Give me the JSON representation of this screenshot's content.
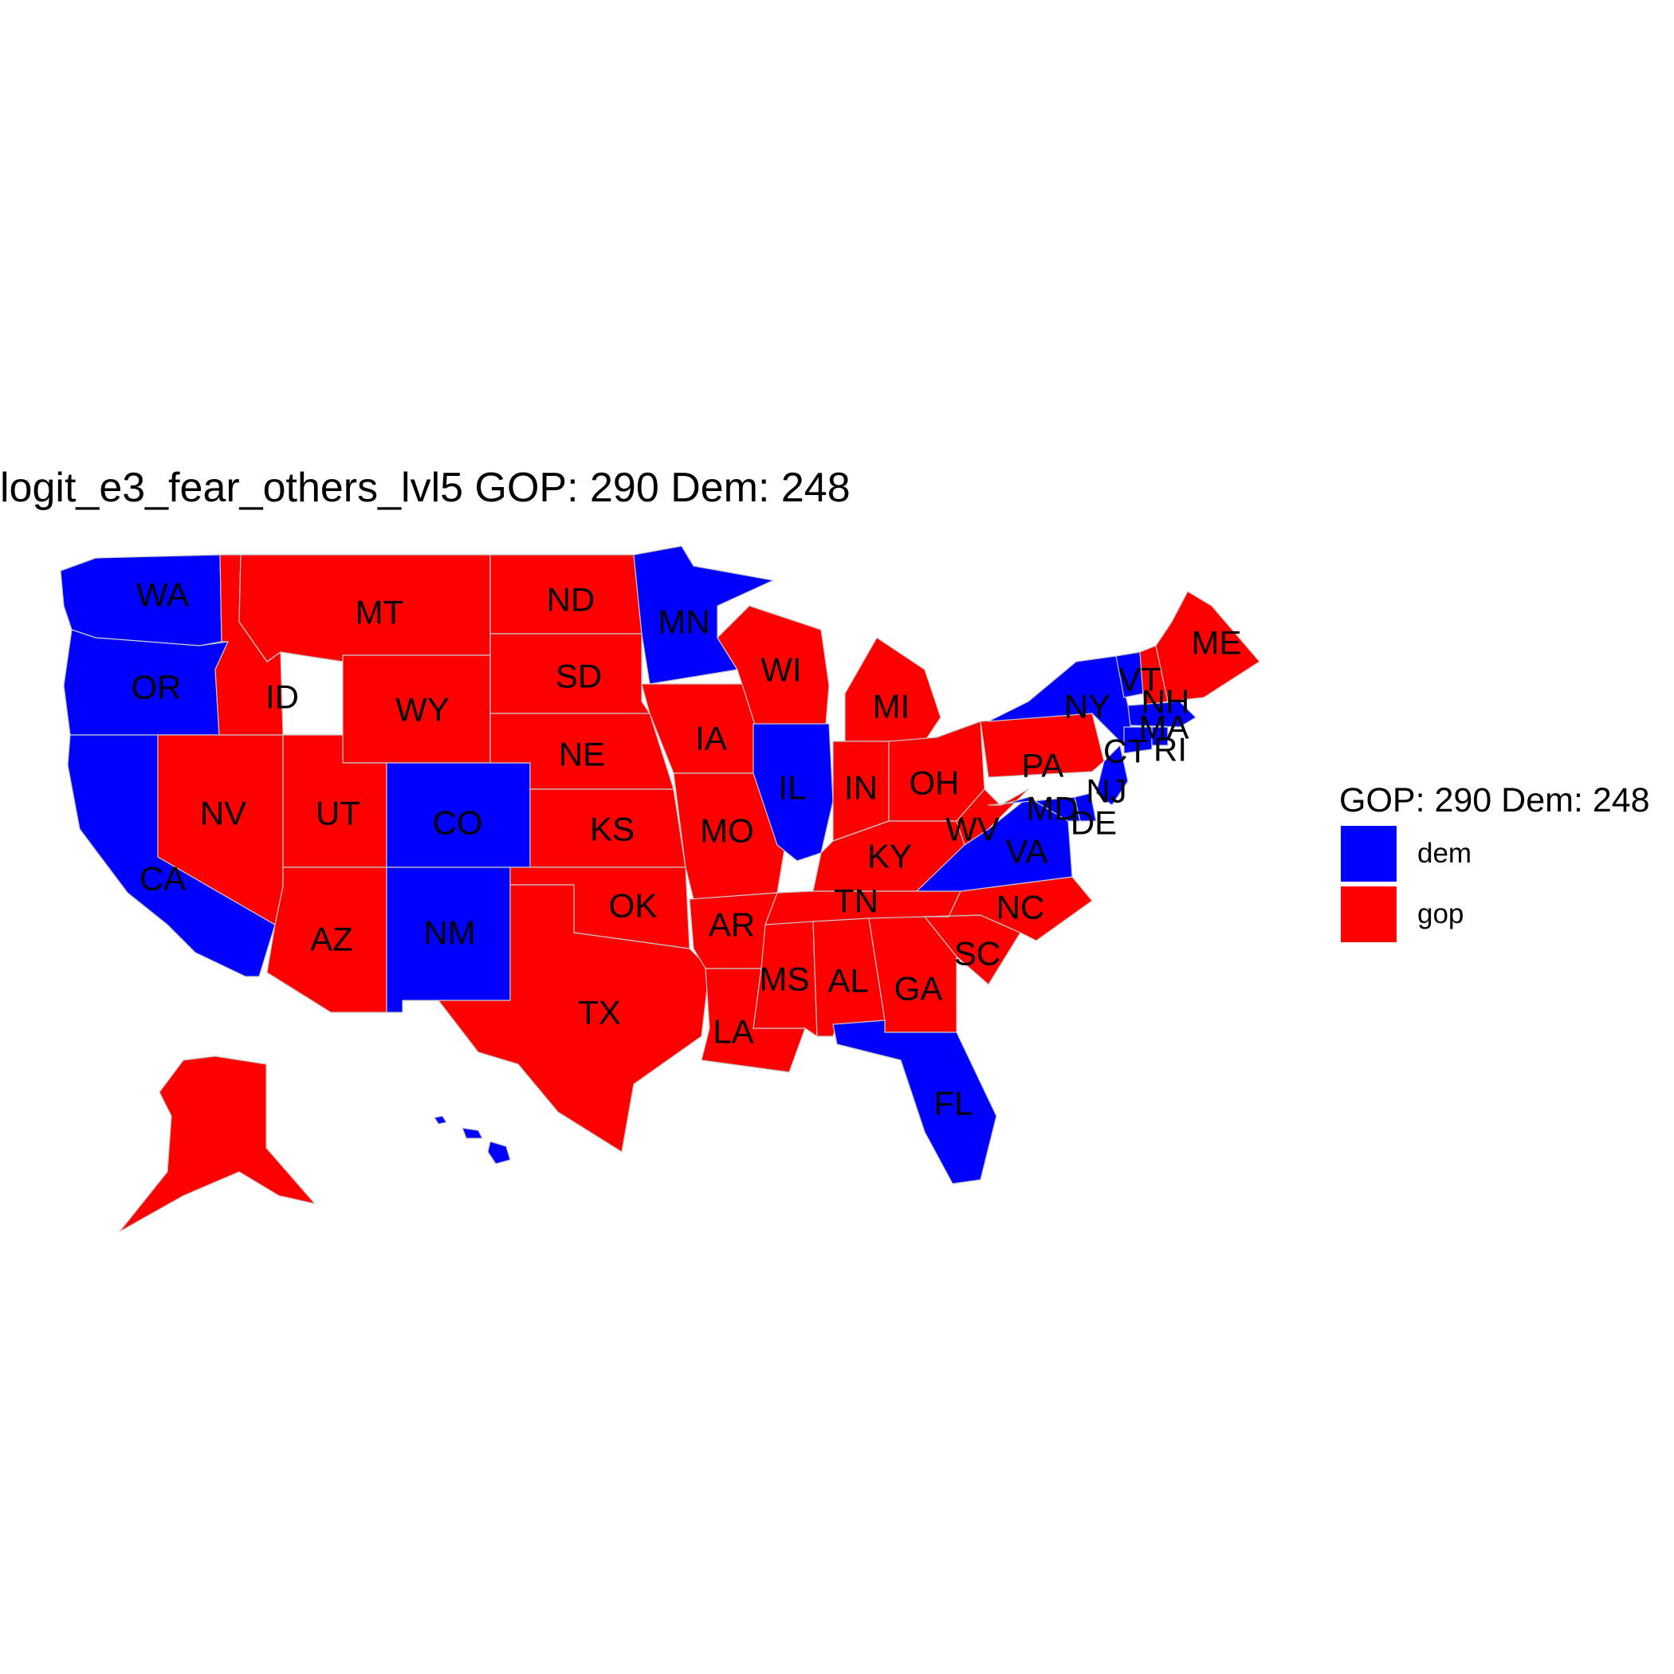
{
  "title": "logit_e3_fear_others_lvl5 GOP: 290 Dem: 248",
  "legend": {
    "title": "GOP: 290 Dem: 248",
    "items": [
      {
        "key": "dem",
        "label": "dem",
        "color": "#0000FF"
      },
      {
        "key": "gop",
        "label": "gop",
        "color": "#FF0000"
      }
    ]
  },
  "colors": {
    "dem": "#0000FF",
    "gop": "#FF0000"
  },
  "states": [
    {
      "abbr": "WA",
      "winner": "dem"
    },
    {
      "abbr": "OR",
      "winner": "dem"
    },
    {
      "abbr": "CA",
      "winner": "dem"
    },
    {
      "abbr": "ID",
      "winner": "gop"
    },
    {
      "abbr": "NV",
      "winner": "gop"
    },
    {
      "abbr": "MT",
      "winner": "gop"
    },
    {
      "abbr": "WY",
      "winner": "gop"
    },
    {
      "abbr": "UT",
      "winner": "gop"
    },
    {
      "abbr": "AZ",
      "winner": "gop"
    },
    {
      "abbr": "CO",
      "winner": "dem"
    },
    {
      "abbr": "NM",
      "winner": "dem"
    },
    {
      "abbr": "ND",
      "winner": "gop"
    },
    {
      "abbr": "SD",
      "winner": "gop"
    },
    {
      "abbr": "NE",
      "winner": "gop"
    },
    {
      "abbr": "KS",
      "winner": "gop"
    },
    {
      "abbr": "OK",
      "winner": "gop"
    },
    {
      "abbr": "TX",
      "winner": "gop"
    },
    {
      "abbr": "MN",
      "winner": "dem"
    },
    {
      "abbr": "IA",
      "winner": "gop"
    },
    {
      "abbr": "MO",
      "winner": "gop"
    },
    {
      "abbr": "AR",
      "winner": "gop"
    },
    {
      "abbr": "LA",
      "winner": "gop"
    },
    {
      "abbr": "WI",
      "winner": "gop"
    },
    {
      "abbr": "IL",
      "winner": "dem"
    },
    {
      "abbr": "MI",
      "winner": "gop"
    },
    {
      "abbr": "IN",
      "winner": "gop"
    },
    {
      "abbr": "OH",
      "winner": "gop"
    },
    {
      "abbr": "KY",
      "winner": "gop"
    },
    {
      "abbr": "TN",
      "winner": "gop"
    },
    {
      "abbr": "MS",
      "winner": "gop"
    },
    {
      "abbr": "AL",
      "winner": "gop"
    },
    {
      "abbr": "GA",
      "winner": "gop"
    },
    {
      "abbr": "FL",
      "winner": "dem"
    },
    {
      "abbr": "SC",
      "winner": "gop"
    },
    {
      "abbr": "NC",
      "winner": "gop"
    },
    {
      "abbr": "VA",
      "winner": "dem"
    },
    {
      "abbr": "WV",
      "winner": "gop"
    },
    {
      "abbr": "PA",
      "winner": "gop"
    },
    {
      "abbr": "NY",
      "winner": "dem"
    },
    {
      "abbr": "NJ",
      "winner": "dem"
    },
    {
      "abbr": "DE",
      "winner": "dem"
    },
    {
      "abbr": "MD",
      "winner": "dem"
    },
    {
      "abbr": "VT",
      "winner": "dem"
    },
    {
      "abbr": "NH",
      "winner": "gop"
    },
    {
      "abbr": "ME",
      "winner": "gop"
    },
    {
      "abbr": "MA",
      "winner": "dem"
    },
    {
      "abbr": "CT",
      "winner": "dem"
    },
    {
      "abbr": "RI",
      "winner": "dem"
    },
    {
      "abbr": "AK",
      "winner": "gop"
    },
    {
      "abbr": "HI",
      "winner": "dem"
    }
  ]
}
